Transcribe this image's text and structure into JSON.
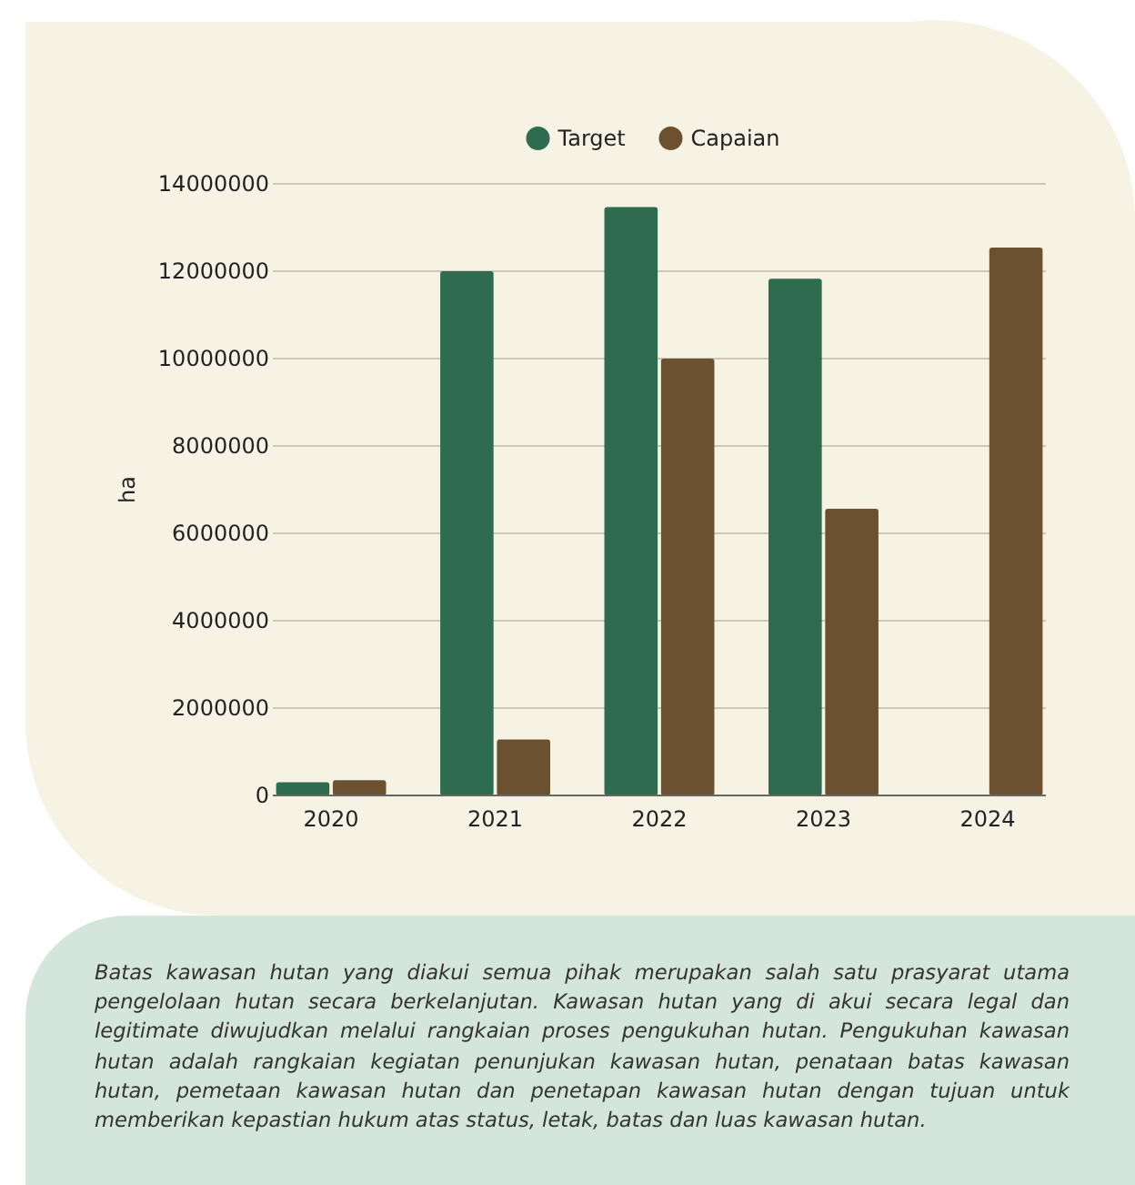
{
  "chart_data": {
    "type": "bar",
    "ylabel": "ha",
    "categories": [
      "2020",
      "2021",
      "2022",
      "2023",
      "2024"
    ],
    "series": [
      {
        "name": "Target",
        "color": "#2f6b4f",
        "values": [
          300000,
          12000000,
          13470000,
          11830000,
          null
        ]
      },
      {
        "name": "Capaian",
        "color": "#6b5130",
        "values": [
          350000,
          1280000,
          10000000,
          6560000,
          12540000
        ]
      }
    ],
    "ylim": [
      0,
      14000000
    ],
    "yticks": [
      0,
      2000000,
      4000000,
      6000000,
      8000000,
      10000000,
      12000000,
      14000000
    ],
    "grid": "y",
    "legend": "top",
    "annotations": [
      "Batas kawasan hutan yang diakui semua pihak merupakan salah satu prasyarat utama pengelolaan hutan secara berkelanjutan. Kawasan hutan yang di akui secara legal dan legitimate diwujudkan melalui rangkaian proses pengukuhan hutan. Pengukuhan kawasan hutan adalah rangkaian kegiatan penunjukan kawasan hutan, penataan batas kawasan hutan, pemetaan kawasan hutan dan penetapan kawasan hutan dengan tujuan untuk memberikan kepastian hukum atas status, letak, batas dan luas kawasan hutan."
    ]
  }
}
